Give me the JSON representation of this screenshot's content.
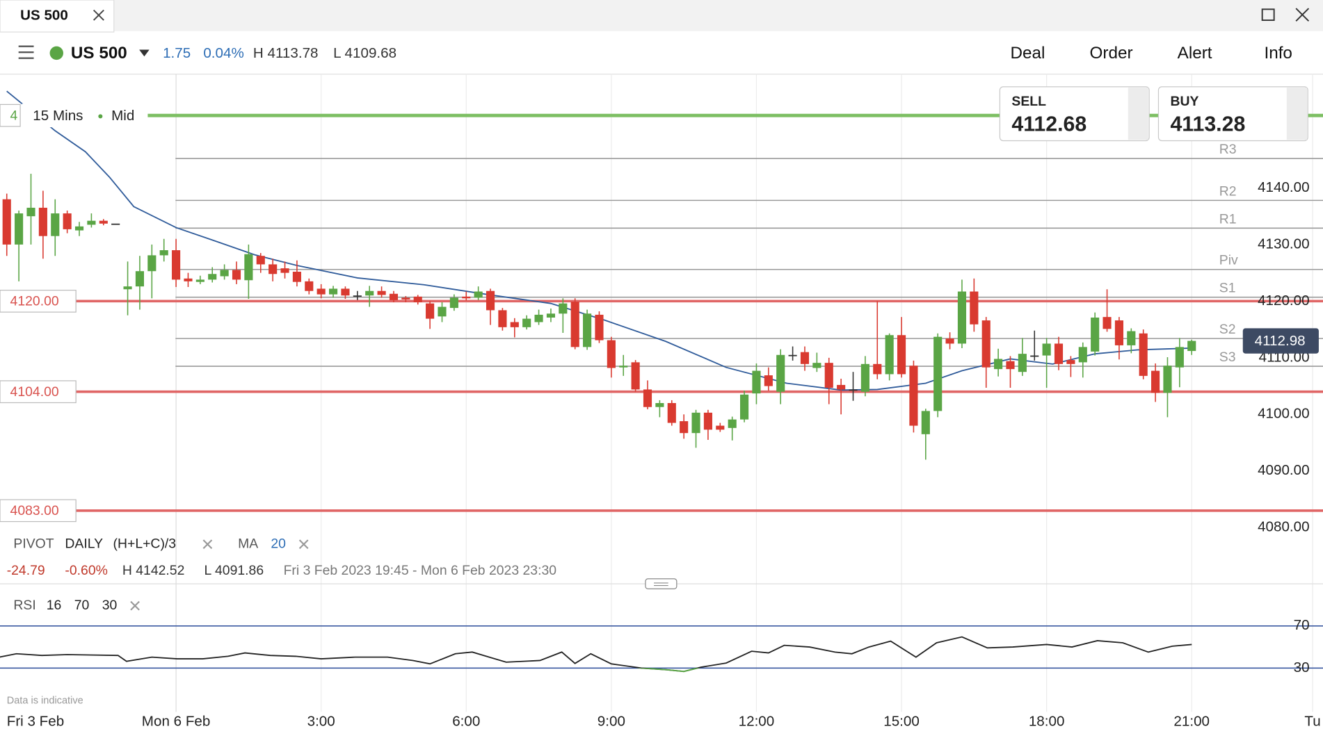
{
  "ui": {
    "tab": "US 500",
    "instrument": "US 500",
    "change": "1.75",
    "change_pct": "0.04%",
    "high": "H 4113.78",
    "low": "L 4109.68",
    "menu": [
      "Deal",
      "Order",
      "Alert",
      "Info"
    ],
    "sell": {
      "label": "SELL",
      "price": "4112.68"
    },
    "buy": {
      "label": "BUY",
      "price": "4113.28"
    },
    "interval": "15 Mins",
    "price_type": "Mid",
    "disclaimer": "Data is indicative"
  },
  "chart_data": [
    {
      "type": "candlestick",
      "xlim": [
        -0.56,
        108.86
      ],
      "ylim": [
        4078.7,
        4160.1
      ],
      "yticks": [
        {
          "value": 4140,
          "label": "4140.00"
        },
        {
          "value": 4130,
          "label": "4130.00"
        },
        {
          "value": 4120,
          "label": "4120.00"
        },
        {
          "value": 4110,
          "label": "4110.00"
        },
        {
          "value": 4100,
          "label": "4100.00"
        },
        {
          "value": 4090,
          "label": "4090.00"
        },
        {
          "value": 4080,
          "label": "4080.00"
        }
      ],
      "xticks": [
        {
          "value": 0,
          "label": "Fri 3 Feb"
        },
        {
          "value": 14,
          "label": "Mon 6 Feb"
        },
        {
          "value": 26,
          "label": "3:00"
        },
        {
          "value": 38,
          "label": "6:00"
        },
        {
          "value": 50,
          "label": "9:00"
        },
        {
          "value": 62,
          "label": "12:00"
        },
        {
          "value": 74,
          "label": "15:00"
        },
        {
          "value": 86,
          "label": "18:00"
        },
        {
          "value": 98,
          "label": "21:00"
        },
        {
          "value": 108,
          "label": "Tu"
        }
      ],
      "up_color": "#5aa545",
      "down_color": "#d93a30",
      "flat_color": "#333333",
      "open": [
        4138,
        4130,
        4135,
        4136.5,
        4131.5,
        4135.5,
        4132.5,
        4133.5,
        4134.2,
        4133.7,
        4122.1,
        4122.6,
        4125.3,
        4128.1,
        4129,
        4124,
        4123.4,
        4123.8,
        4124.4,
        4125.5,
        4123.7,
        4128,
        4126.5,
        4125.8,
        4125.2,
        4123.5,
        4122.2,
        4121.2,
        4122.2,
        4121,
        4121,
        4121.8,
        4121.3,
        4120.6,
        4120.8,
        4119.6,
        4117.3,
        4118.8,
        4120.8,
        4120.6,
        4121.8,
        4118.4,
        4116.3,
        4115.4,
        4116.3,
        4117.1,
        4117.8,
        4119.9,
        4111.9,
        4117.6,
        4113.1,
        4108.3,
        4109.2,
        4104.4,
        4101.3,
        4102,
        4098.8,
        4096.7,
        4100.3,
        4098,
        4097.6,
        4099.1,
        4103.7,
        4106.9,
        4104,
        4110.5,
        4111,
        4108.2,
        4109.1,
        4105.2,
        4104.4,
        4104,
        4108.9,
        4107.1,
        4114,
        4108.6,
        4096.5,
        4100.6,
        4113.4,
        4112.5,
        4121.7,
        4116.6,
        4108,
        4109.4,
        4107.5,
        4110.4,
        4110.4,
        4112.5,
        4109.6,
        4109.2,
        4111.1,
        4117.2,
        4116.6,
        4112.2,
        4114.3,
        4107.7,
        4103.8,
        4108.3,
        4111.2
      ],
      "high": [
        4139,
        4136,
        4142.5,
        4139.5,
        4138,
        4136,
        4134,
        4135.5,
        4134.5,
        4133.7,
        4127,
        4128,
        4130,
        4131,
        4131,
        4125,
        4124.5,
        4126,
        4126.5,
        4127,
        4130,
        4128.5,
        4127.5,
        4127,
        4127.2,
        4124,
        4123,
        4122.7,
        4122.6,
        4121.8,
        4122.7,
        4122.6,
        4121.8,
        4120.9,
        4121.1,
        4120,
        4119.8,
        4121.2,
        4121.7,
        4122.6,
        4122.2,
        4118.8,
        4117,
        4117.5,
        4118.5,
        4118.7,
        4120.5,
        4120.5,
        4118.5,
        4118.2,
        4113.7,
        4110.5,
        4109.6,
        4106,
        4102.5,
        4102.5,
        4100,
        4100.8,
        4100.8,
        4098.5,
        4099.6,
        4104.2,
        4109,
        4108.3,
        4111.5,
        4112,
        4112,
        4110.9,
        4110,
        4106.3,
        4107.5,
        4110.3,
        4120,
        4114.3,
        4117.2,
        4109.5,
        4101,
        4114.3,
        4114.5,
        4123.8,
        4124,
        4117.2,
        4111.6,
        4110.3,
        4113.5,
        4114.8,
        4113.5,
        4113.7,
        4110.3,
        4112.7,
        4118,
        4122.1,
        4117.2,
        4115.2,
        4115,
        4109,
        4110.1,
        4113.5,
        4113.2
      ],
      "low": [
        4128,
        4123.5,
        4130,
        4127.5,
        4128,
        4132,
        4131.5,
        4133,
        4133.4,
        4133.7,
        4117.5,
        4118.5,
        4120.5,
        4127,
        4122.5,
        4122.5,
        4123,
        4123.3,
        4123.8,
        4123,
        4120.4,
        4125,
        4123.5,
        4124,
        4122.6,
        4121.2,
        4120.5,
        4120.6,
        4120.4,
        4120.2,
        4119,
        4120.6,
        4119.8,
        4119.8,
        4119.4,
        4115.1,
        4116.3,
        4118.3,
        4120.1,
        4120.2,
        4115.8,
        4114.8,
        4113.6,
        4115,
        4115.8,
        4116.3,
        4114.4,
        4111.5,
        4111.4,
        4112.6,
        4106.5,
        4106.8,
        4104,
        4100.9,
        4099.5,
        4098,
        4095.7,
        4094.1,
        4095.5,
        4096.9,
        4095.4,
        4098.6,
        4101.8,
        4104.2,
        4101.8,
        4109.5,
        4107.7,
        4107.5,
        4101.8,
        4100,
        4102.4,
        4103.2,
        4106.2,
        4106,
        4106.5,
        4096.8,
        4092,
        4099.5,
        4111.5,
        4111.7,
        4114.6,
        4104.7,
        4106.7,
        4104.7,
        4106.8,
        4109.5,
        4104.7,
        4107.8,
        4106.6,
        4106.5,
        4110.4,
        4114.6,
        4109.7,
        4110.8,
        4106.2,
        4102.2,
        4099.5,
        4104.8,
        4110.5
      ],
      "close": [
        4130,
        4135.5,
        4136.5,
        4131.5,
        4135.5,
        4132.7,
        4133.2,
        4134.2,
        4133.7,
        4133.7,
        4122.6,
        4125.3,
        4128.1,
        4129,
        4123.8,
        4123.5,
        4123.8,
        4124.8,
        4125.5,
        4123.8,
        4128.3,
        4126.5,
        4124.8,
        4125,
        4123.4,
        4121.8,
        4121.2,
        4122.2,
        4121,
        4121,
        4121.8,
        4121.1,
        4120.2,
        4120.3,
        4119.8,
        4116.9,
        4119,
        4120.6,
        4120.5,
        4121.7,
        4118.4,
        4115.4,
        4115.4,
        4116.9,
        4117.6,
        4117.8,
        4119.6,
        4111.9,
        4117.8,
        4113.1,
        4108.2,
        4108.6,
        4104.4,
        4101.3,
        4102,
        4098.5,
        4096.7,
        4100.3,
        4097.3,
        4097.3,
        4099.1,
        4103.5,
        4107.7,
        4105,
        4110.5,
        4110.5,
        4108.9,
        4109.1,
        4104.7,
        4104.4,
        4104.4,
        4108.9,
        4107.1,
        4114,
        4107.1,
        4098,
        4100.6,
        4113.7,
        4112.5,
        4121.7,
        4115.9,
        4108.3,
        4109.8,
        4108,
        4110.7,
        4110.4,
        4112.5,
        4108.9,
        4108.9,
        4111.9,
        4117.1,
        4115.1,
        4112.2,
        4114.7,
        4106.8,
        4103.8,
        4108.6,
        4111.9,
        4112.98
      ],
      "ma": {
        "color": "#2f5b9a",
        "x": [
          0,
          4,
          6.5,
          8.5,
          10.5,
          14,
          17,
          20.5,
          24,
          29,
          34.5,
          40,
          45,
          49.5,
          54.5,
          59.5,
          64.5,
          69,
          72,
          76,
          79,
          83,
          86.5,
          90,
          93.5,
          98
        ],
        "values": [
          4157.1,
          4150.1,
          4146.4,
          4141.9,
          4136.7,
          4133,
          4130.8,
          4128.2,
          4126.3,
          4124.1,
          4122.9,
          4121.1,
          4119.6,
          4116.6,
          4112.9,
          4108.3,
          4105.5,
          4104.3,
          4104.4,
          4105.5,
          4107.7,
          4109.8,
          4108.9,
          4110.7,
          4111.4,
          4111.7
        ]
      },
      "pivots": [
        {
          "label": "R3",
          "value": 4145.2
        },
        {
          "label": "R2",
          "value": 4137.8
        },
        {
          "label": "R1",
          "value": 4132.9
        },
        {
          "label": "Piv",
          "value": 4125.6
        },
        {
          "label": "S1",
          "value": 4120.7
        },
        {
          "label": "S2",
          "value": 4113.4
        },
        {
          "label": "S3",
          "value": 4108.5
        }
      ],
      "levels": [
        {
          "value": 4120,
          "label": "4120.00"
        },
        {
          "value": 4104,
          "label": "4104.00"
        },
        {
          "value": 4083,
          "label": "4083.00"
        }
      ],
      "green_level": {
        "value": 4152.8,
        "label": "4"
      },
      "last_price": 4112.98,
      "indicators": {
        "pivot": "PIVOT",
        "pivot_period": "DAILY",
        "pivot_formula": "(H+L+C)/3",
        "ma": "MA",
        "ma_period": "20"
      },
      "stats": {
        "change": "-24.79",
        "change_pct": "-0.60%",
        "high": "H 4142.52",
        "low": "L 4091.86",
        "range": "Fri 3 Feb 2023 19:45 - Mon 6 Feb 2023 23:30"
      }
    },
    {
      "type": "line",
      "title": "RSI",
      "params": [
        "16",
        "70",
        "30"
      ],
      "xlim": [
        -0.56,
        108.86
      ],
      "ylim": [
        0,
        100
      ],
      "yticks": [
        70,
        30
      ],
      "color": "#222222",
      "below_color": "#5aa545",
      "band_color": "#2b4c9a",
      "x": [
        -0.6,
        0.8,
        2.9,
        5,
        9.2,
        9.9,
        12,
        14.1,
        16.2,
        18.3,
        19.7,
        21.8,
        23.9,
        26,
        28.8,
        31.5,
        33.6,
        35,
        37.1,
        38.5,
        39.9,
        41.3,
        44.1,
        45.9,
        47,
        48.3,
        50,
        52.5,
        54.6,
        56,
        57.4,
        59.5,
        61.6,
        63,
        64.3,
        66.4,
        68.5,
        69.9,
        71.3,
        73.1,
        75.2,
        76.9,
        79,
        81.1,
        83.2,
        86,
        88.1,
        90.2,
        92.3,
        94.4,
        96.4,
        98
      ],
      "values": [
        40.4,
        43.6,
        42,
        42.8,
        42,
        36.4,
        40.4,
        38.8,
        38.8,
        41.2,
        44.4,
        42,
        41.2,
        38.8,
        40.4,
        40.4,
        37.2,
        34,
        43.6,
        45.2,
        40.4,
        35.6,
        37.2,
        45.2,
        34.4,
        43.6,
        34,
        30,
        28.4,
        26.8,
        30.8,
        34.8,
        46,
        44.4,
        51.6,
        50,
        45.2,
        43.6,
        50,
        55.6,
        40.4,
        54,
        59.6,
        49.2,
        50,
        52.4,
        50,
        56,
        54,
        45.2,
        50.8,
        52.4
      ]
    }
  ]
}
